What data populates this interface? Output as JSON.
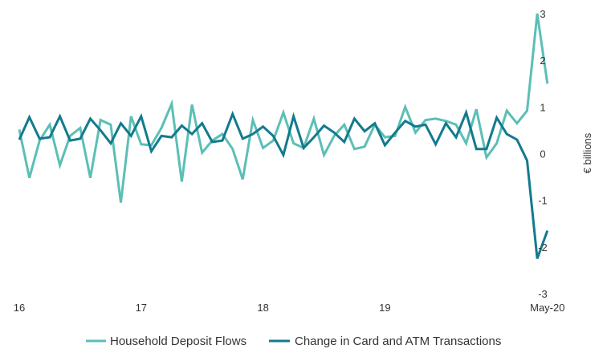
{
  "chart_data": {
    "type": "line",
    "title": "",
    "xlabel": "",
    "ylabel": "€ billions",
    "ylim": [
      -3,
      3
    ],
    "yticks": [
      3,
      2,
      1,
      0,
      -1,
      -2,
      -3
    ],
    "xticks": [
      {
        "index": 0,
        "label": "16"
      },
      {
        "index": 12,
        "label": "17"
      },
      {
        "index": 24,
        "label": "18"
      },
      {
        "index": 36,
        "label": "19"
      },
      {
        "index": 52,
        "label": "May-20"
      }
    ],
    "x_start": "Jan 2016",
    "x_end": "Jun 2020",
    "x_frequency": "monthly",
    "grid": false,
    "legend_position": "bottom",
    "series": [
      {
        "name": "Household Deposit Flows",
        "color": "#5bbfb5",
        "values": [
          0.52,
          -0.52,
          0.28,
          0.62,
          -0.25,
          0.38,
          0.55,
          -0.52,
          0.72,
          0.62,
          -1.05,
          0.8,
          0.2,
          0.18,
          0.55,
          1.07,
          -0.6,
          1.05,
          0.02,
          0.28,
          0.42,
          0.1,
          -0.55,
          0.72,
          0.12,
          0.28,
          0.88,
          0.22,
          0.12,
          0.75,
          -0.03,
          0.38,
          0.62,
          0.1,
          0.15,
          0.62,
          0.35,
          0.38,
          1.0,
          0.45,
          0.72,
          0.75,
          0.7,
          0.62,
          0.22,
          0.95,
          -0.08,
          0.22,
          0.92,
          0.65,
          0.92,
          3.0,
          1.5
        ]
      },
      {
        "name": "Change in Card and ATM Transactions",
        "color": "#137a8e",
        "values": [
          0.3,
          0.78,
          0.32,
          0.35,
          0.8,
          0.28,
          0.32,
          0.75,
          0.5,
          0.22,
          0.65,
          0.38,
          0.8,
          0.05,
          0.38,
          0.35,
          0.6,
          0.42,
          0.65,
          0.25,
          0.28,
          0.85,
          0.32,
          0.42,
          0.58,
          0.38,
          -0.03,
          0.8,
          0.12,
          0.35,
          0.6,
          0.45,
          0.25,
          0.75,
          0.48,
          0.65,
          0.18,
          0.45,
          0.7,
          0.58,
          0.62,
          0.2,
          0.65,
          0.35,
          0.88,
          0.1,
          0.1,
          0.77,
          0.42,
          0.3,
          -0.15,
          -2.25,
          -1.65
        ]
      }
    ]
  }
}
